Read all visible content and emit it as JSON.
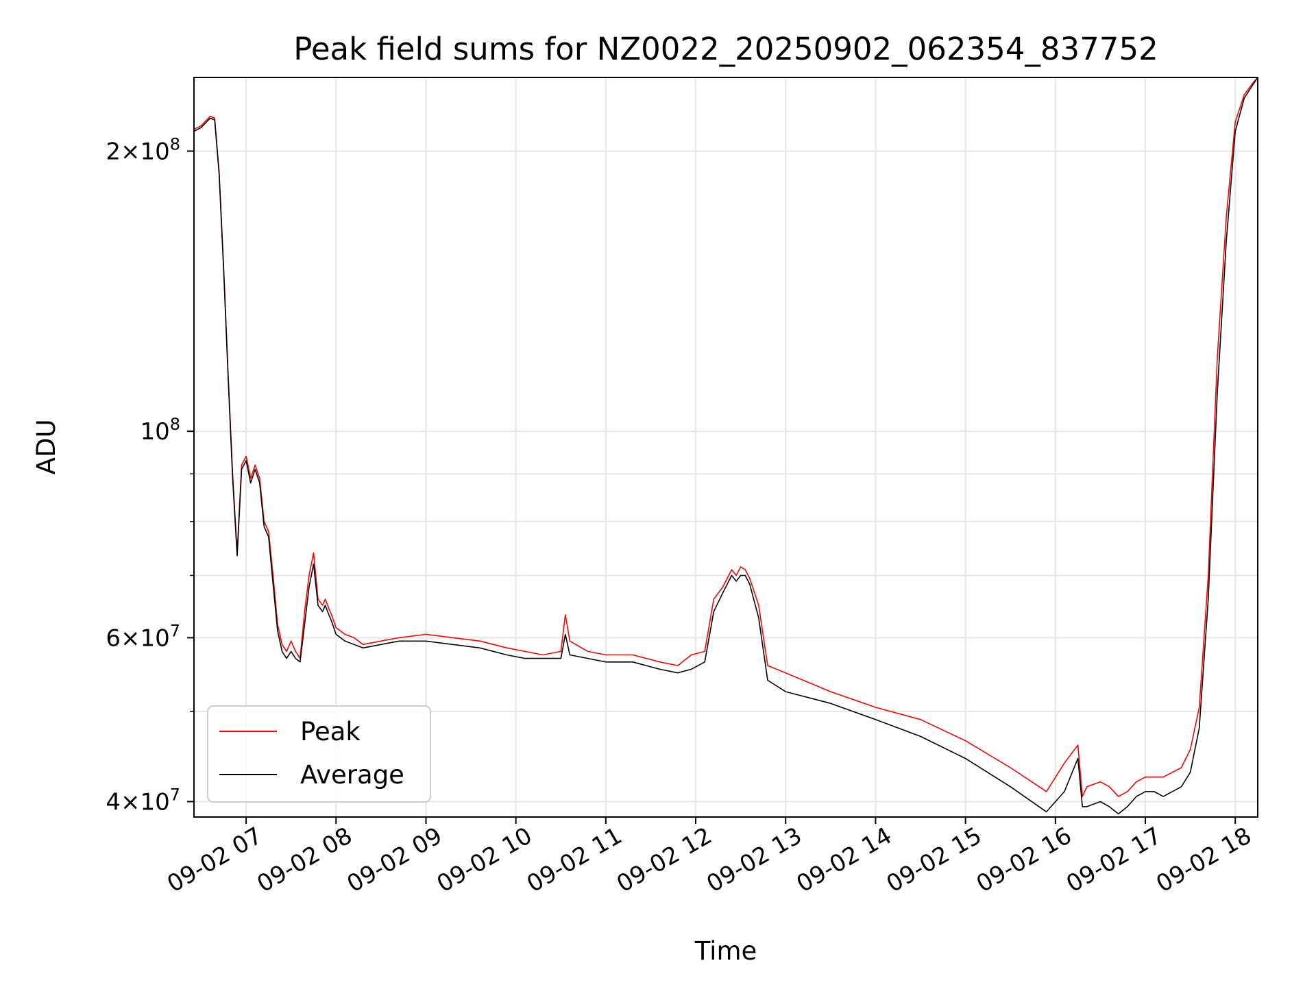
{
  "chart_data": {
    "type": "line",
    "title": "Peak field sums for NZ0022_20250902_062354_837752",
    "xlabel": "Time",
    "ylabel": "ADU",
    "yscale": "log",
    "ylim": [
      38500000,
      240000000
    ],
    "xlim_hours": [
      6.42,
      18.25
    ],
    "x_ticks": [
      "09-02 07",
      "09-02 08",
      "09-02 09",
      "09-02 10",
      "09-02 11",
      "09-02 12",
      "09-02 13",
      "09-02 14",
      "09-02 15",
      "09-02 16",
      "09-02 17",
      "09-02 18"
    ],
    "y_ticks": [
      {
        "value": 200000000,
        "mant": "2",
        "exp": "8"
      },
      {
        "value": 100000000,
        "mant": "",
        "exp": "8"
      },
      {
        "value": 60000000,
        "mant": "6",
        "exp": "7"
      },
      {
        "value": 40000000,
        "mant": "4",
        "exp": "7"
      }
    ],
    "grid": true,
    "legend_position": "lower-left",
    "series": [
      {
        "name": "Peak",
        "color": "#ff0000",
        "x": [
          6.42,
          6.5,
          6.6,
          6.65,
          6.7,
          6.75,
          6.8,
          6.85,
          6.9,
          6.95,
          7.0,
          7.05,
          7.1,
          7.15,
          7.2,
          7.25,
          7.3,
          7.35,
          7.4,
          7.45,
          7.5,
          7.55,
          7.6,
          7.65,
          7.7,
          7.75,
          7.8,
          7.85,
          7.88,
          7.92,
          7.95,
          8.0,
          8.05,
          8.1,
          8.2,
          8.3,
          8.5,
          8.7,
          9.0,
          9.3,
          9.6,
          9.9,
          10.1,
          10.3,
          10.5,
          10.55,
          10.6,
          10.8,
          11.0,
          11.3,
          11.6,
          11.8,
          11.95,
          12.1,
          12.2,
          12.3,
          12.4,
          12.45,
          12.5,
          12.55,
          12.6,
          12.7,
          12.8,
          13.0,
          13.5,
          14.0,
          14.5,
          15.0,
          15.5,
          15.9,
          16.1,
          16.25,
          16.3,
          16.35,
          16.5,
          16.6,
          16.7,
          16.8,
          16.9,
          17.0,
          17.1,
          17.2,
          17.3,
          17.4,
          17.5,
          17.6,
          17.7,
          17.8,
          17.9,
          18.0,
          18.1,
          18.2,
          18.25
        ],
        "y": [
          211000000,
          213000000,
          218000000,
          217000000,
          190000000,
          150000000,
          115000000,
          90000000,
          74000000,
          92000000,
          94000000,
          89000000,
          92000000,
          89000000,
          80000000,
          78000000,
          70000000,
          62000000,
          59000000,
          58000000,
          59500000,
          58000000,
          57000000,
          64000000,
          70000000,
          74000000,
          66000000,
          65000000,
          66000000,
          64500000,
          63500000,
          61500000,
          61000000,
          60500000,
          60000000,
          59000000,
          59500000,
          60000000,
          60500000,
          60000000,
          59500000,
          58500000,
          58000000,
          57500000,
          58000000,
          63500000,
          59500000,
          58000000,
          57500000,
          57500000,
          56500000,
          56000000,
          57500000,
          58000000,
          66000000,
          68000000,
          71000000,
          70000000,
          71500000,
          71000000,
          69500000,
          65000000,
          56000000,
          55000000,
          52500000,
          50500000,
          49000000,
          46500000,
          43500000,
          41000000,
          44000000,
          46000000,
          40500000,
          41500000,
          42000000,
          41500000,
          40500000,
          41000000,
          42000000,
          42500000,
          42500000,
          42500000,
          43000000,
          43500000,
          45500000,
          50500000,
          70000000,
          120000000,
          170000000,
          215000000,
          230000000,
          237000000,
          240000000
        ]
      },
      {
        "name": "Average",
        "color": "#000000",
        "x": [
          6.42,
          6.5,
          6.6,
          6.65,
          6.7,
          6.75,
          6.8,
          6.85,
          6.9,
          6.95,
          7.0,
          7.05,
          7.1,
          7.15,
          7.2,
          7.25,
          7.3,
          7.35,
          7.4,
          7.45,
          7.5,
          7.55,
          7.6,
          7.65,
          7.7,
          7.75,
          7.8,
          7.85,
          7.88,
          7.92,
          7.95,
          8.0,
          8.05,
          8.1,
          8.2,
          8.3,
          8.5,
          8.7,
          9.0,
          9.3,
          9.6,
          9.9,
          10.1,
          10.3,
          10.5,
          10.55,
          10.6,
          10.8,
          11.0,
          11.3,
          11.6,
          11.8,
          11.95,
          12.1,
          12.2,
          12.3,
          12.4,
          12.45,
          12.5,
          12.55,
          12.6,
          12.7,
          12.8,
          13.0,
          13.5,
          14.0,
          14.5,
          15.0,
          15.5,
          15.9,
          16.1,
          16.25,
          16.3,
          16.35,
          16.5,
          16.6,
          16.7,
          16.8,
          16.9,
          17.0,
          17.1,
          17.2,
          17.3,
          17.4,
          17.5,
          17.6,
          17.7,
          17.8,
          17.9,
          18.0,
          18.1,
          18.2,
          18.25
        ],
        "y": [
          210000000,
          212000000,
          217000000,
          216000000,
          189000000,
          149000000,
          114000000,
          89000000,
          73500000,
          91000000,
          93000000,
          88000000,
          91000000,
          88000000,
          79000000,
          77000000,
          68500000,
          61000000,
          58000000,
          57000000,
          58000000,
          57000000,
          56500000,
          62000000,
          68000000,
          72000000,
          65000000,
          64000000,
          65000000,
          63500000,
          62500000,
          60500000,
          60000000,
          59500000,
          59000000,
          58500000,
          59000000,
          59500000,
          59500000,
          59000000,
          58500000,
          57500000,
          57000000,
          57000000,
          57000000,
          60500000,
          57500000,
          57000000,
          56500000,
          56500000,
          55500000,
          55000000,
          55500000,
          56500000,
          64000000,
          67000000,
          70000000,
          69000000,
          70000000,
          70000000,
          68500000,
          63000000,
          54000000,
          52500000,
          51000000,
          49000000,
          47000000,
          44500000,
          41500000,
          39000000,
          41000000,
          44500000,
          39500000,
          39500000,
          40000000,
          39500000,
          38800000,
          39500000,
          40500000,
          41000000,
          41000000,
          40500000,
          41000000,
          41500000,
          43000000,
          48000000,
          66000000,
          110000000,
          160000000,
          210000000,
          228000000,
          236000000,
          240000000
        ]
      }
    ]
  }
}
